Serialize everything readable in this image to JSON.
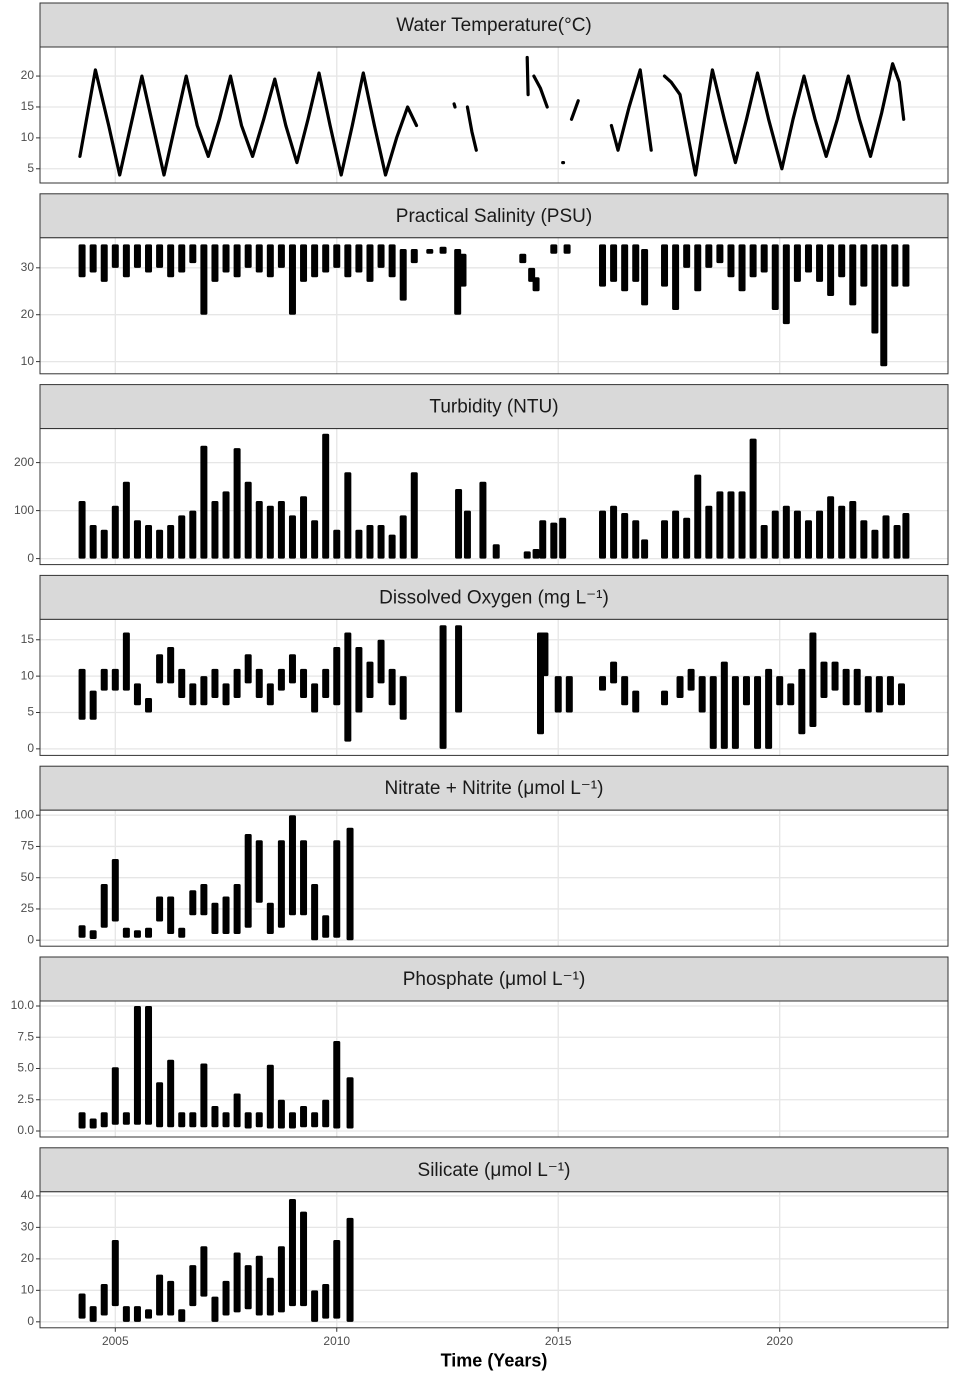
{
  "chart_data": [
    {
      "type": "line",
      "title": "Water Temperature(°C)",
      "x": [
        2004.2,
        2004.55,
        2004.85,
        2005.1,
        2005.35,
        2005.6,
        2005.85,
        2006.1,
        2006.35,
        2006.6,
        2006.85,
        2007.1,
        2007.35,
        2007.6,
        2007.85,
        2008.1,
        2008.35,
        2008.6,
        2008.85,
        2009.1,
        2009.35,
        2009.6,
        2009.85,
        2010.1,
        2010.35,
        2010.6,
        2010.85,
        2011.1,
        2011.35,
        2011.6,
        2011.8,
        null,
        2012.65,
        2012.67,
        null,
        2012.95,
        2013.05,
        2013.15,
        null,
        2014.3,
        2014.32,
        null,
        2014.45,
        2014.6,
        2014.75,
        null,
        2015.1,
        2015.12,
        null,
        2015.3,
        2015.45,
        null,
        2016.2,
        2016.35,
        2016.6,
        2016.85,
        2017.1,
        null,
        2017.4,
        2017.55,
        2017.75,
        2018.1,
        2018.3,
        2018.48,
        2018.75,
        2019.0,
        2019.25,
        2019.5,
        2019.75,
        2020.05,
        2020.3,
        2020.55,
        2020.8,
        2021.05,
        2021.3,
        2021.55,
        2021.8,
        2022.05,
        2022.3,
        2022.55,
        2022.7,
        2022.8
      ],
      "values": [
        7,
        21,
        12,
        4,
        12,
        20,
        12,
        4,
        12,
        20,
        12,
        7,
        13,
        20,
        12,
        7,
        13,
        19.5,
        12,
        6,
        13,
        20.5,
        12,
        4,
        12,
        20.5,
        12,
        4,
        10,
        15,
        12,
        null,
        15.5,
        15,
        null,
        15,
        11,
        8,
        null,
        23,
        17,
        null,
        20,
        18,
        15,
        null,
        6,
        6,
        null,
        13,
        16,
        null,
        12,
        8,
        15,
        21,
        8,
        null,
        20,
        19,
        17,
        4,
        13,
        21,
        13,
        6,
        13,
        20.5,
        13,
        5,
        13,
        20,
        13,
        7,
        13,
        20,
        13,
        7,
        14,
        22,
        19,
        13
      ],
      "xlim": [
        2003.3,
        2023.8
      ],
      "xticks": [
        2005,
        2010,
        2015,
        2020
      ],
      "ylim": [
        2.7,
        24.7
      ],
      "yticks": [
        5,
        10,
        15,
        20
      ]
    },
    {
      "type": "range",
      "title": "Practical Salinity (PSU)",
      "x": [
        2004.25,
        2004.5,
        2004.75,
        2005,
        2005.25,
        2005.5,
        2005.75,
        2006,
        2006.25,
        2006.5,
        2006.75,
        2007,
        2007.25,
        2007.5,
        2007.75,
        2008,
        2008.25,
        2008.5,
        2008.75,
        2009,
        2009.25,
        2009.5,
        2009.75,
        2010,
        2010.25,
        2010.5,
        2010.75,
        2011,
        2011.25,
        2011.5,
        2011.75,
        2012.1,
        2012.4,
        2012.73,
        2012.85,
        2014.2,
        2014.4,
        2014.5,
        2014.9,
        2015.2,
        2016.0,
        2016.25,
        2016.5,
        2016.75,
        2016.95,
        2017.4,
        2017.65,
        2017.9,
        2018.15,
        2018.4,
        2018.65,
        2018.9,
        2019.15,
        2019.4,
        2019.65,
        2019.9,
        2020.15,
        2020.4,
        2020.65,
        2020.9,
        2021.15,
        2021.4,
        2021.65,
        2021.9,
        2022.15,
        2022.35,
        2022.6,
        2022.85
      ],
      "low": [
        28,
        29,
        27,
        30,
        28,
        30,
        29,
        30,
        28,
        29,
        31,
        20,
        27,
        29,
        28,
        30,
        29,
        28,
        30,
        20,
        27,
        28,
        29,
        30,
        28,
        29,
        27,
        30,
        28,
        23,
        31,
        33,
        33,
        20,
        26,
        31,
        27,
        25,
        33,
        33,
        26,
        27,
        25,
        27,
        22,
        26,
        21,
        30,
        25,
        30,
        31,
        28,
        25,
        28,
        29,
        21,
        18,
        27,
        29,
        27,
        24,
        28,
        22,
        26,
        16,
        9,
        26,
        26
      ],
      "high": [
        35,
        35,
        35,
        35,
        35,
        35,
        35,
        35,
        35,
        35,
        35,
        35,
        35,
        35,
        35,
        35,
        35,
        35,
        35,
        35,
        35,
        35,
        35,
        35,
        35,
        35,
        35,
        35,
        35,
        34,
        34,
        34,
        34.5,
        34,
        33,
        33,
        30,
        28,
        35,
        35,
        35,
        35,
        35,
        35,
        34,
        35,
        35,
        35,
        35,
        35,
        35,
        35,
        35,
        35,
        35,
        35,
        35,
        35,
        35,
        35,
        35,
        35,
        35,
        35,
        35,
        35,
        35,
        35
      ],
      "xlim": [
        2003.3,
        2023.8
      ],
      "xticks": [
        2005,
        2010,
        2015,
        2020
      ],
      "ylim": [
        7.4,
        36.4
      ],
      "yticks": [
        10,
        20,
        30
      ]
    },
    {
      "type": "range",
      "title": "Turbidity (NTU)",
      "x": [
        2004.25,
        2004.5,
        2004.75,
        2005,
        2005.25,
        2005.5,
        2005.75,
        2006,
        2006.25,
        2006.5,
        2006.75,
        2007,
        2007.25,
        2007.5,
        2007.75,
        2008,
        2008.25,
        2008.5,
        2008.75,
        2009,
        2009.25,
        2009.5,
        2009.75,
        2010,
        2010.25,
        2010.5,
        2010.75,
        2011,
        2011.25,
        2011.5,
        2011.75,
        2012.75,
        2012.95,
        2013.3,
        2013.6,
        2014.3,
        2014.5,
        2014.65,
        2014.9,
        2015.1,
        2016.0,
        2016.25,
        2016.5,
        2016.75,
        2016.95,
        2017.4,
        2017.65,
        2017.9,
        2018.15,
        2018.4,
        2018.65,
        2018.9,
        2019.15,
        2019.4,
        2019.65,
        2019.9,
        2020.15,
        2020.4,
        2020.65,
        2020.9,
        2021.15,
        2021.4,
        2021.65,
        2021.9,
        2022.15,
        2022.4,
        2022.65,
        2022.85
      ],
      "low": [
        0,
        0,
        0,
        0,
        0,
        0,
        0,
        0,
        0,
        0,
        0,
        0,
        0,
        0,
        0,
        0,
        0,
        0,
        0,
        0,
        0,
        0,
        0,
        0,
        0,
        0,
        0,
        0,
        0,
        0,
        0,
        0,
        0,
        0,
        0,
        0,
        0,
        0,
        0,
        0,
        0,
        0,
        0,
        0,
        0,
        0,
        0,
        0,
        0,
        0,
        0,
        0,
        0,
        0,
        0,
        0,
        0,
        0,
        0,
        0,
        0,
        0,
        0,
        0,
        0,
        0,
        0,
        0
      ],
      "high": [
        120,
        70,
        60,
        110,
        160,
        80,
        70,
        60,
        70,
        90,
        100,
        235,
        120,
        140,
        230,
        160,
        120,
        110,
        120,
        90,
        130,
        80,
        260,
        60,
        180,
        60,
        70,
        70,
        50,
        90,
        180,
        145,
        100,
        160,
        30,
        15,
        20,
        80,
        75,
        85,
        100,
        110,
        95,
        80,
        40,
        80,
        100,
        85,
        175,
        110,
        140,
        140,
        140,
        250,
        70,
        100,
        110,
        100,
        80,
        100,
        130,
        110,
        120,
        80,
        60,
        90,
        70,
        95
      ],
      "xlim": [
        2003.3,
        2023.8
      ],
      "xticks": [
        2005,
        2010,
        2015,
        2020
      ],
      "ylim": [
        -12.5,
        270.8
      ],
      "yticks": [
        0,
        100,
        200
      ]
    },
    {
      "type": "range",
      "title": "Dissolved Oxygen (mg L⁻¹)",
      "x": [
        2004.25,
        2004.5,
        2004.75,
        2005,
        2005.25,
        2005.5,
        2005.75,
        2006,
        2006.25,
        2006.5,
        2006.75,
        2007,
        2007.25,
        2007.5,
        2007.75,
        2008,
        2008.25,
        2008.5,
        2008.75,
        2009,
        2009.25,
        2009.5,
        2009.75,
        2010,
        2010.25,
        2010.5,
        2010.75,
        2011,
        2011.25,
        2011.5,
        2012.4,
        2012.75,
        2014.6,
        2014.7,
        2015.0,
        2015.25,
        2016.0,
        2016.25,
        2016.5,
        2016.75,
        2017.4,
        2017.75,
        2018.0,
        2018.25,
        2018.5,
        2018.75,
        2019.0,
        2019.25,
        2019.5,
        2019.75,
        2020.0,
        2020.25,
        2020.5,
        2020.75,
        2021.0,
        2021.25,
        2021.5,
        2021.75,
        2022.0,
        2022.25,
        2022.5,
        2022.75
      ],
      "low": [
        4,
        4,
        8,
        8,
        8,
        6,
        5,
        9,
        9,
        7,
        6,
        6,
        7,
        6,
        7,
        9,
        7,
        6,
        8,
        9,
        7,
        5,
        7,
        6,
        1,
        5,
        7,
        9,
        6,
        4,
        0,
        5,
        2,
        10,
        5,
        5,
        8,
        9,
        6,
        5,
        6,
        7,
        8,
        5,
        0,
        0,
        0,
        6,
        0,
        0,
        6,
        6,
        2,
        3,
        7,
        8,
        6,
        6,
        5,
        5,
        6,
        6
      ],
      "high": [
        11,
        8,
        11,
        11,
        16,
        9,
        7,
        13,
        14,
        11,
        9,
        10,
        11,
        9,
        11,
        13,
        11,
        9,
        11,
        13,
        11,
        9,
        11,
        14,
        16,
        14,
        12,
        15,
        11,
        10,
        17,
        17,
        16,
        16,
        10,
        10,
        10,
        12,
        10,
        8,
        8,
        10,
        11,
        10,
        10,
        12,
        10,
        10,
        10,
        11,
        10,
        9,
        11,
        16,
        12,
        12,
        11,
        11,
        10,
        10,
        10,
        9
      ],
      "xlim": [
        2003.3,
        2023.8
      ],
      "xticks": [
        2005,
        2010,
        2015,
        2020
      ],
      "ylim": [
        -0.9,
        17.8
      ],
      "yticks": [
        0,
        5,
        10,
        15
      ]
    },
    {
      "type": "range",
      "title": "Nitrate + Nitrite (μmol L⁻¹)",
      "x": [
        2004.25,
        2004.5,
        2004.75,
        2005,
        2005.25,
        2005.5,
        2005.75,
        2006,
        2006.25,
        2006.5,
        2006.75,
        2007,
        2007.25,
        2007.5,
        2007.75,
        2008,
        2008.25,
        2008.5,
        2008.75,
        2009,
        2009.25,
        2009.5,
        2009.75,
        2010,
        2010.3
      ],
      "low": [
        2,
        1,
        10,
        15,
        2,
        2,
        2,
        15,
        5,
        2,
        20,
        20,
        5,
        5,
        5,
        10,
        30,
        5,
        10,
        20,
        20,
        0,
        2,
        2,
        0
      ],
      "high": [
        12,
        8,
        45,
        65,
        10,
        8,
        10,
        35,
        35,
        10,
        40,
        45,
        30,
        35,
        45,
        85,
        80,
        30,
        80,
        100,
        80,
        45,
        20,
        80,
        90
      ],
      "xlim": [
        2003.3,
        2023.8
      ],
      "xticks": [
        2005,
        2010,
        2015,
        2020
      ],
      "ylim": [
        -4.8,
        104
      ],
      "yticks": [
        0,
        25,
        50,
        75,
        100
      ]
    },
    {
      "type": "range",
      "title": "Phosphate (μmol L⁻¹)",
      "x": [
        2004.25,
        2004.5,
        2004.75,
        2005,
        2005.25,
        2005.5,
        2005.75,
        2006,
        2006.25,
        2006.5,
        2006.75,
        2007,
        2007.25,
        2007.5,
        2007.75,
        2008,
        2008.25,
        2008.5,
        2008.75,
        2009,
        2009.25,
        2009.5,
        2009.75,
        2010,
        2010.3
      ],
      "low": [
        0.2,
        0.2,
        0.3,
        0.5,
        0.5,
        0.5,
        0.5,
        0.3,
        0.3,
        0.3,
        0.3,
        0.3,
        0.3,
        0.3,
        0.3,
        0.2,
        0.3,
        0.2,
        0.2,
        0.2,
        0.3,
        0.3,
        0.3,
        0.2,
        0.2
      ],
      "high": [
        1.5,
        1,
        1.5,
        5.1,
        1.5,
        10,
        10,
        3.9,
        5.7,
        1.5,
        1.5,
        5.4,
        2,
        1.5,
        3,
        1.5,
        1.5,
        5.3,
        2.5,
        1.5,
        2,
        1.5,
        2.5,
        7.2,
        4.3
      ],
      "xlim": [
        2003.3,
        2023.8
      ],
      "xticks": [
        2005,
        2010,
        2015,
        2020
      ],
      "ylim": [
        -0.48,
        10.4
      ],
      "yticks": [
        {
          "value": 0,
          "label": "0.0"
        },
        2.5,
        {
          "value": 5,
          "label": "5.0"
        },
        7.5,
        {
          "value": 10,
          "label": "10.0"
        }
      ]
    },
    {
      "type": "range",
      "title": "Silicate (μmol L⁻¹)",
      "x": [
        2004.25,
        2004.5,
        2004.75,
        2005,
        2005.25,
        2005.5,
        2005.75,
        2006,
        2006.25,
        2006.5,
        2006.75,
        2007,
        2007.25,
        2007.5,
        2007.75,
        2008,
        2008.25,
        2008.5,
        2008.75,
        2009,
        2009.25,
        2009.5,
        2009.75,
        2010,
        2010.3
      ],
      "low": [
        1,
        0,
        2,
        5,
        0,
        0,
        1,
        2,
        2,
        0,
        5,
        8,
        0,
        2,
        3,
        4,
        2,
        2,
        3,
        5,
        5,
        0,
        1,
        1,
        0
      ],
      "high": [
        9,
        5,
        12,
        26,
        5,
        5,
        4,
        15,
        13,
        4,
        18,
        24,
        8,
        13,
        22,
        18,
        21,
        14,
        24,
        39,
        35,
        10,
        12,
        26,
        33
      ],
      "xlim": [
        2003.3,
        2023.8
      ],
      "xticks": [
        {
          "value": 2005,
          "label": "2005"
        },
        {
          "value": 2010,
          "label": "2010"
        },
        {
          "value": 2015,
          "label": "2015"
        },
        {
          "value": 2020,
          "label": "2020"
        }
      ],
      "ylim": [
        -1.9,
        41.3
      ],
      "yticks": [
        0,
        10,
        20,
        30,
        40
      ],
      "x_label": "Time (Years)"
    }
  ]
}
